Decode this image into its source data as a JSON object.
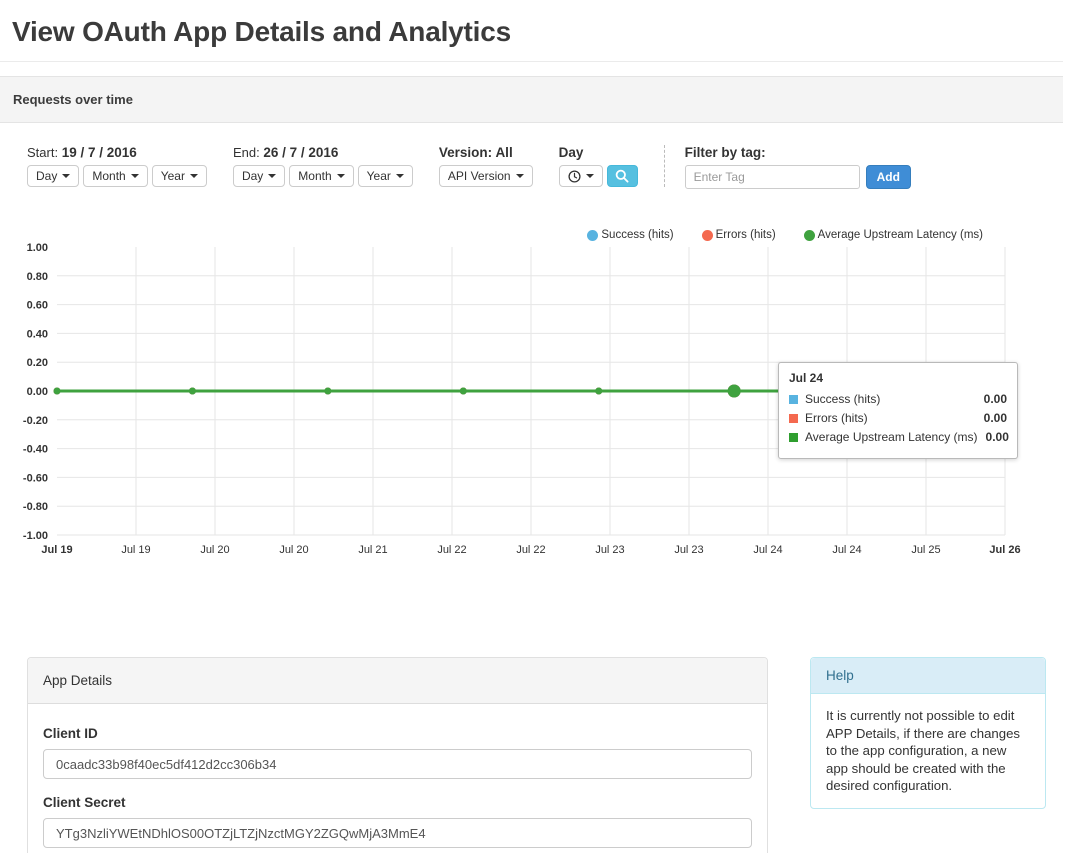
{
  "page": {
    "title": "View OAuth App Details and Analytics"
  },
  "requests_panel": {
    "title": "Requests over time"
  },
  "filters": {
    "start": {
      "label": "Start:",
      "value": "19 / 7 / 2016"
    },
    "end": {
      "label": "End:",
      "value": "26 / 7 / 2016"
    },
    "date_buttons": {
      "day": "Day",
      "month": "Month",
      "year": "Year"
    },
    "version": {
      "label": "Version:",
      "value": "All",
      "button": "API Version"
    },
    "granularity": {
      "label": "Day"
    },
    "tag": {
      "label": "Filter by tag:",
      "placeholder": "Enter Tag",
      "add_label": "Add"
    }
  },
  "chart_data": {
    "type": "line",
    "title": "Requests over time",
    "x": [
      "Jul 19",
      "Jul 20",
      "Jul 21",
      "Jul 22",
      "Jul 23",
      "Jul 24",
      "Jul 25",
      "Jul 26"
    ],
    "series": [
      {
        "name": "Success (hits)",
        "color": "#58b3e0",
        "values": [
          0,
          0,
          0,
          0,
          0,
          0,
          0,
          0
        ]
      },
      {
        "name": "Errors (hits)",
        "color": "#f4694f",
        "values": [
          0,
          0,
          0,
          0,
          0,
          0,
          0,
          0
        ]
      },
      {
        "name": "Average Upstream Latency (ms)",
        "color": "#3fa23f",
        "values": [
          0,
          0,
          0,
          0,
          0,
          0,
          0,
          0
        ]
      }
    ],
    "ylim": [
      -1,
      1
    ],
    "y_ticks": [
      "1.00",
      "0.80",
      "0.60",
      "0.40",
      "0.20",
      "0.00",
      "-0.20",
      "-0.40",
      "-0.60",
      "-0.80",
      "-1.00"
    ],
    "x_tick_labels": [
      "Jul 19",
      "Jul 19",
      "Jul 20",
      "Jul 20",
      "Jul 21",
      "Jul 22",
      "Jul 22",
      "Jul 23",
      "Jul 23",
      "Jul 24",
      "Jul 24",
      "Jul 25",
      "Jul 26"
    ],
    "grid": true,
    "legend_position": "top-right",
    "hovered_x": "Jul 24"
  },
  "tooltip": {
    "title": "Jul 24",
    "rows": [
      {
        "label": "Success (hits)",
        "value": "0.00",
        "color": "#58b3e0"
      },
      {
        "label": "Errors (hits)",
        "value": "0.00",
        "color": "#f4694f"
      },
      {
        "label": "Average Upstream Latency (ms)",
        "value": "0.00",
        "color": "#2f9e2f"
      }
    ]
  },
  "app_details": {
    "title": "App Details",
    "client_id_label": "Client ID",
    "client_id": "0caadc33b98f40ec5df412d2cc306b34",
    "client_secret_label": "Client Secret",
    "client_secret": "YTg3NzliYWEtNDhlOS00OTZjLTZjNzctMGY2ZGQwMjA3MmE4"
  },
  "help": {
    "title": "Help",
    "body": "It is currently not possible to edit APP Details, if there are changes to the app configuration, a new app should be created with the desired configuration."
  }
}
